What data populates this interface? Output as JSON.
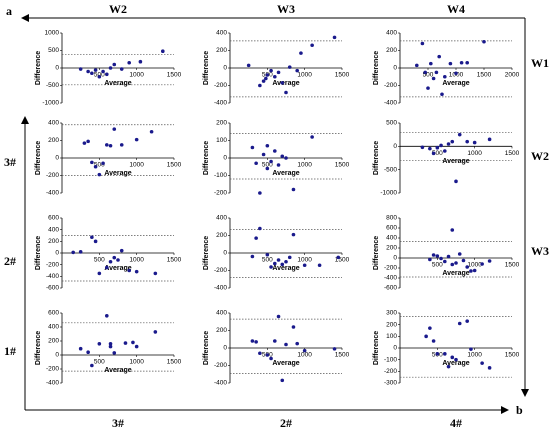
{
  "figure": {
    "corner_labels": [
      "a",
      "b"
    ],
    "top_labels": [
      "W2",
      "W3",
      "W4"
    ],
    "right_labels": [
      "W1",
      "W2",
      "W3"
    ],
    "left_labels": [
      "3#",
      "2#",
      "1#"
    ],
    "bottom_labels": [
      "3#",
      "2#",
      "4#"
    ]
  },
  "chart_data": [
    {
      "type": "scatter",
      "x_label": "Average",
      "y_label": "Difference",
      "color": "#1a1a8c",
      "xlim": [
        0,
        1500
      ],
      "xticks": [
        500,
        1000,
        1500
      ],
      "ylim": [
        -1000,
        1000
      ],
      "yticks": [
        -1000,
        -500,
        0,
        500,
        1000
      ],
      "hlines": [
        380,
        -480
      ],
      "x": [
        250,
        350,
        400,
        450,
        500,
        550,
        600,
        650,
        700,
        800,
        900,
        1050,
        1350
      ],
      "y": [
        -30,
        -100,
        -150,
        -60,
        -250,
        -100,
        -180,
        0,
        100,
        -30,
        150,
        180,
        480
      ]
    },
    {
      "type": "scatter",
      "x_label": "Average",
      "y_label": "Difference",
      "color": "#1a1a8c",
      "xlim": [
        0,
        1500
      ],
      "xticks": [
        500,
        1000,
        1500
      ],
      "ylim": [
        -400,
        400
      ],
      "yticks": [
        -400,
        -200,
        0,
        200,
        400
      ],
      "hlines": [
        310,
        -330
      ],
      "x": [
        250,
        400,
        450,
        480,
        500,
        550,
        600,
        650,
        700,
        750,
        800,
        900,
        950,
        1100,
        1400
      ],
      "y": [
        30,
        -200,
        -150,
        -120,
        -80,
        -30,
        -100,
        -50,
        -170,
        -280,
        10,
        -30,
        170,
        260,
        350
      ]
    },
    {
      "type": "scatter",
      "x_label": "Average",
      "y_label": "Difference",
      "color": "#1a1a8c",
      "xlim": [
        0,
        2000
      ],
      "xticks": [
        500,
        1000,
        1500,
        2000
      ],
      "ylim": [
        -400,
        400
      ],
      "yticks": [
        -400,
        -200,
        0,
        200,
        400
      ],
      "hlines": [
        310,
        -330
      ],
      "x": [
        300,
        400,
        450,
        500,
        550,
        600,
        650,
        700,
        750,
        800,
        900,
        1000,
        1100,
        1200,
        1500
      ],
      "y": [
        30,
        280,
        -50,
        -230,
        50,
        -120,
        -50,
        130,
        -300,
        -100,
        50,
        -60,
        60,
        60,
        300
      ]
    },
    {
      "type": "scatter",
      "x_label": "Average",
      "y_label": "Difference",
      "color": "#1a1a8c",
      "xlim": [
        0,
        1500
      ],
      "xticks": [
        500,
        1000,
        1500
      ],
      "ylim": [
        -400,
        400
      ],
      "yticks": [
        -400,
        -200,
        0,
        200,
        400
      ],
      "hlines": [
        380,
        -200
      ],
      "x": [
        300,
        350,
        400,
        450,
        500,
        550,
        600,
        650,
        700,
        800,
        1000,
        1200
      ],
      "y": [
        170,
        190,
        -50,
        -100,
        -190,
        -60,
        150,
        140,
        330,
        150,
        210,
        300
      ]
    },
    {
      "type": "scatter",
      "x_label": "Average",
      "y_label": "Difference",
      "color": "#1a1a8c",
      "xlim": [
        0,
        1500
      ],
      "xticks": [
        500,
        1000,
        1500
      ],
      "ylim": [
        -200,
        200
      ],
      "yticks": [
        -200,
        -100,
        0,
        100,
        200
      ],
      "hlines": [
        140,
        -120
      ],
      "x": [
        300,
        350,
        400,
        450,
        500,
        500,
        550,
        600,
        650,
        700,
        750,
        850,
        1100
      ],
      "y": [
        60,
        -30,
        -200,
        20,
        70,
        -60,
        -20,
        40,
        -40,
        10,
        0,
        -180,
        120
      ]
    },
    {
      "type": "scatter",
      "x_label": "Average",
      "y_label": "Difference",
      "color": "#1a1a8c",
      "xlim": [
        0,
        1500
      ],
      "xticks": [
        500,
        1000,
        1500
      ],
      "ylim": [
        -1000,
        500
      ],
      "yticks": [
        -1000,
        -500,
        0,
        500
      ],
      "hlines": [
        300,
        -300
      ],
      "x": [
        300,
        400,
        450,
        500,
        550,
        600,
        650,
        700,
        750,
        800,
        900,
        1000,
        1200
      ],
      "y": [
        -20,
        -50,
        -150,
        -30,
        20,
        -100,
        50,
        100,
        -750,
        250,
        100,
        80,
        150
      ]
    },
    {
      "type": "scatter",
      "x_label": "Average",
      "y_label": "Difference",
      "color": "#1a1a8c",
      "xlim": [
        0,
        1500
      ],
      "xticks": [
        500,
        1000,
        1500
      ],
      "ylim": [
        -600,
        600
      ],
      "yticks": [
        -600,
        -400,
        -200,
        0,
        200,
        400,
        600
      ],
      "hlines": [
        300,
        -480
      ],
      "x": [
        150,
        250,
        400,
        450,
        500,
        600,
        650,
        700,
        750,
        800,
        900,
        1000,
        1250
      ],
      "y": [
        10,
        20,
        270,
        200,
        -350,
        -250,
        -150,
        -80,
        -120,
        40,
        -300,
        -320,
        -350
      ]
    },
    {
      "type": "scatter",
      "x_label": "Average",
      "y_label": "Difference",
      "color": "#1a1a8c",
      "xlim": [
        0,
        1500
      ],
      "xticks": [
        500,
        1000,
        1500
      ],
      "ylim": [
        -400,
        400
      ],
      "yticks": [
        -400,
        -200,
        0,
        200,
        400
      ],
      "hlines": [
        270,
        -280
      ],
      "x": [
        300,
        350,
        400,
        500,
        550,
        600,
        650,
        700,
        750,
        800,
        850,
        1000,
        1200,
        1450
      ],
      "y": [
        -40,
        170,
        280,
        -20,
        -160,
        -120,
        -80,
        -130,
        -100,
        -50,
        210,
        -140,
        -140,
        -50
      ]
    },
    {
      "type": "scatter",
      "x_label": "Average",
      "y_label": "Difference",
      "color": "#1a1a8c",
      "xlim": [
        0,
        1500
      ],
      "xticks": [
        500,
        1000,
        1500
      ],
      "ylim": [
        -600,
        800
      ],
      "yticks": [
        -600,
        -400,
        -200,
        0,
        200,
        400,
        600,
        800
      ],
      "hlines": [
        330,
        -380
      ],
      "x": [
        400,
        450,
        500,
        550,
        600,
        650,
        700,
        700,
        750,
        800,
        850,
        900,
        950,
        1000,
        1100,
        1200
      ],
      "y": [
        -30,
        60,
        40,
        -10,
        -70,
        30,
        560,
        -130,
        -100,
        80,
        -50,
        -180,
        -260,
        -250,
        -120,
        -60
      ]
    },
    {
      "type": "scatter",
      "x_label": "Average",
      "y_label": "Difference",
      "color": "#1a1a8c",
      "xlim": [
        0,
        1500
      ],
      "xticks": [
        500,
        1000,
        1500
      ],
      "ylim": [
        -400,
        600
      ],
      "yticks": [
        -400,
        -200,
        0,
        200,
        400,
        600
      ],
      "hlines": [
        460,
        -230
      ],
      "x": [
        250,
        350,
        400,
        500,
        600,
        650,
        650,
        700,
        850,
        950,
        1000,
        1250
      ],
      "y": [
        90,
        40,
        -150,
        160,
        560,
        160,
        120,
        30,
        170,
        180,
        120,
        330
      ]
    },
    {
      "type": "scatter",
      "x_label": "Average",
      "y_label": "Difference",
      "color": "#1a1a8c",
      "xlim": [
        0,
        1500
      ],
      "xticks": [
        500,
        1000,
        1500
      ],
      "ylim": [
        -400,
        400
      ],
      "yticks": [
        -400,
        -200,
        0,
        200,
        400
      ],
      "hlines": [
        330,
        -290
      ],
      "x": [
        300,
        350,
        400,
        500,
        550,
        600,
        650,
        700,
        750,
        850,
        900,
        1000,
        1400
      ],
      "y": [
        80,
        70,
        -60,
        -80,
        -120,
        80,
        360,
        -370,
        40,
        240,
        50,
        -30,
        -10
      ]
    },
    {
      "type": "scatter",
      "x_label": "Average",
      "y_label": "Difference",
      "color": "#1a1a8c",
      "xlim": [
        0,
        1500
      ],
      "xticks": [
        500,
        1000,
        1500
      ],
      "ylim": [
        -300,
        300
      ],
      "yticks": [
        -300,
        -200,
        -100,
        0,
        100,
        200,
        300
      ],
      "hlines": [
        270,
        -250
      ],
      "x": [
        350,
        400,
        450,
        500,
        600,
        650,
        700,
        750,
        800,
        900,
        950,
        1100,
        1200
      ],
      "y": [
        100,
        170,
        60,
        -50,
        -50,
        -160,
        -80,
        -100,
        210,
        230,
        -10,
        -130,
        -170
      ]
    }
  ]
}
